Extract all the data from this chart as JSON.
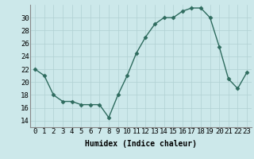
{
  "x": [
    0,
    1,
    2,
    3,
    4,
    5,
    6,
    7,
    8,
    9,
    10,
    11,
    12,
    13,
    14,
    15,
    16,
    17,
    18,
    19,
    20,
    21,
    22,
    23
  ],
  "y": [
    22,
    21,
    18,
    17,
    17,
    16.5,
    16.5,
    16.5,
    14.5,
    18,
    21,
    24.5,
    27,
    29,
    30,
    30,
    31,
    31.5,
    31.5,
    30,
    25.5,
    20.5,
    19,
    21.5
  ],
  "xlabel": "Humidex (Indice chaleur)",
  "xlim": [
    -0.5,
    23.5
  ],
  "ylim": [
    13,
    32
  ],
  "yticks": [
    14,
    16,
    18,
    20,
    22,
    24,
    26,
    28,
    30
  ],
  "xticks": [
    0,
    1,
    2,
    3,
    4,
    5,
    6,
    7,
    8,
    9,
    10,
    11,
    12,
    13,
    14,
    15,
    16,
    17,
    18,
    19,
    20,
    21,
    22,
    23
  ],
  "line_color": "#2e6b5e",
  "marker": "D",
  "marker_size": 2.5,
  "bg_color": "#cce8ea",
  "grid_color": "#b0d0d3",
  "xlabel_fontsize": 7,
  "tick_fontsize": 6.5
}
